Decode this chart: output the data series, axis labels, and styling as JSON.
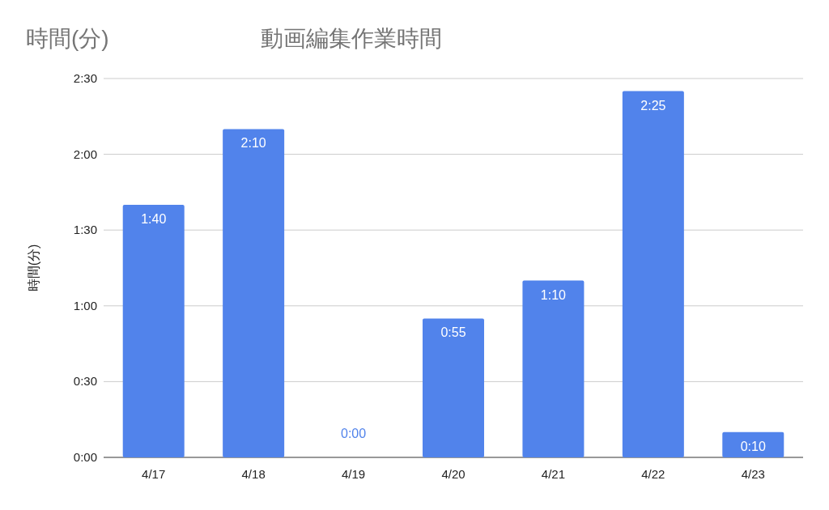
{
  "chart_data": {
    "type": "bar",
    "title": "動画編集作業時間",
    "ylabel": "時間(分)",
    "annotations": [
      "時間(分)"
    ],
    "categories": [
      "4/17",
      "4/18",
      "4/19",
      "4/20",
      "4/21",
      "4/22",
      "4/23"
    ],
    "values": [
      100,
      130,
      0,
      55,
      70,
      145,
      10
    ],
    "value_labels": [
      "1:40",
      "2:10",
      "0:00",
      "0:55",
      "1:10",
      "2:25",
      "0:10"
    ],
    "color": "#5183eb",
    "ylim": [
      0,
      150
    ],
    "yticks": [
      {
        "value": 0,
        "label": "0:00"
      },
      {
        "value": 30,
        "label": "0:30"
      },
      {
        "value": 60,
        "label": "1:00"
      },
      {
        "value": 90,
        "label": "1:30"
      },
      {
        "value": 120,
        "label": "2:00"
      },
      {
        "value": 150,
        "label": "2:30"
      }
    ],
    "grid": "y"
  }
}
